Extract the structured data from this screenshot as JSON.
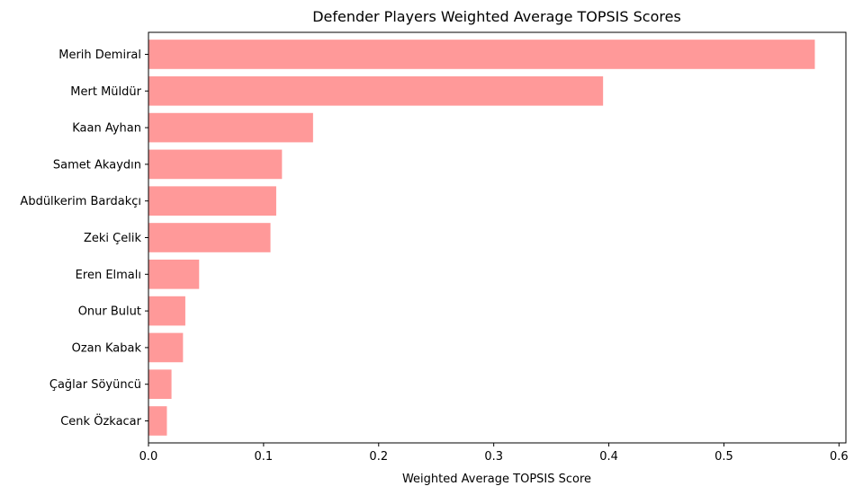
{
  "chart_data": {
    "type": "bar",
    "orientation": "horizontal",
    "title": "Defender Players Weighted Average TOPSIS Scores",
    "xlabel": "Weighted Average TOPSIS Score",
    "ylabel": "",
    "categories": [
      "Merih Demiral",
      "Mert Müldür",
      "Kaan Ayhan",
      "Samet Akaydın",
      "Abdülkerim Bardakçı",
      "Zeki Çelik",
      "Eren Elmalı",
      "Onur Bulut",
      "Ozan Kabak",
      "Çağlar Söyüncü",
      "Cenk Özkacar"
    ],
    "values": [
      0.579,
      0.395,
      0.143,
      0.116,
      0.111,
      0.106,
      0.044,
      0.032,
      0.03,
      0.02,
      0.016
    ],
    "xlim": [
      0,
      0.606
    ],
    "xticks": [
      0.0,
      0.1,
      0.2,
      0.3,
      0.4,
      0.5,
      0.6
    ],
    "xtick_labels": [
      "0.0",
      "0.1",
      "0.2",
      "0.3",
      "0.4",
      "0.5",
      "0.6"
    ],
    "bar_color": "#ff9999",
    "grid": false,
    "legend": "none"
  }
}
